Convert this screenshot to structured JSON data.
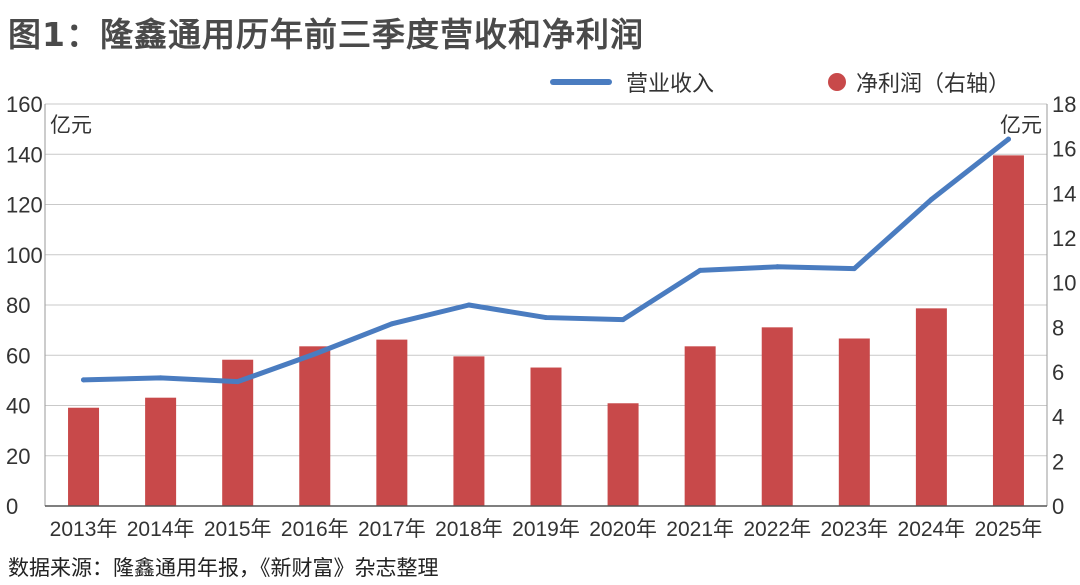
{
  "title": "图1：隆鑫通用历年前三季度营收和净利润",
  "source": "数据来源：隆鑫通用年报，《新财富》杂志整理",
  "chart_data": {
    "type": "bar+line",
    "title": "图1：隆鑫通用历年前三季度营收和净利润",
    "categories": [
      "2013年",
      "2014年",
      "2015年",
      "2016年",
      "2017年",
      "2018年",
      "2019年",
      "2020年",
      "2021年",
      "2022年",
      "2023年",
      "2024年",
      "2025年"
    ],
    "series": [
      {
        "name": "营业收入",
        "type": "line",
        "axis": "left",
        "color": "#4a7cc0",
        "values": [
          50.2,
          51,
          49.5,
          60.5,
          72.5,
          80,
          75,
          74.2,
          93.8,
          95.2,
          94.5,
          122,
          146
        ]
      },
      {
        "name": "净利润（右轴）",
        "type": "bar",
        "axis": "right",
        "color": "#c8494a",
        "values": [
          4.4,
          4.85,
          6.55,
          7.15,
          7.45,
          6.7,
          6.2,
          4.6,
          7.15,
          8.0,
          7.5,
          8.85,
          15.7
        ]
      }
    ],
    "left_axis": {
      "unit": "亿元",
      "ylim": [
        0,
        160
      ],
      "ticks": [
        0,
        20,
        40,
        60,
        80,
        100,
        120,
        140,
        160
      ]
    },
    "right_axis": {
      "unit": "亿元",
      "ylim": [
        0,
        18
      ],
      "ticks": [
        0,
        2,
        4,
        6,
        8,
        10,
        12,
        14,
        16,
        18
      ]
    },
    "grid": true,
    "legend_position": "top-right"
  }
}
